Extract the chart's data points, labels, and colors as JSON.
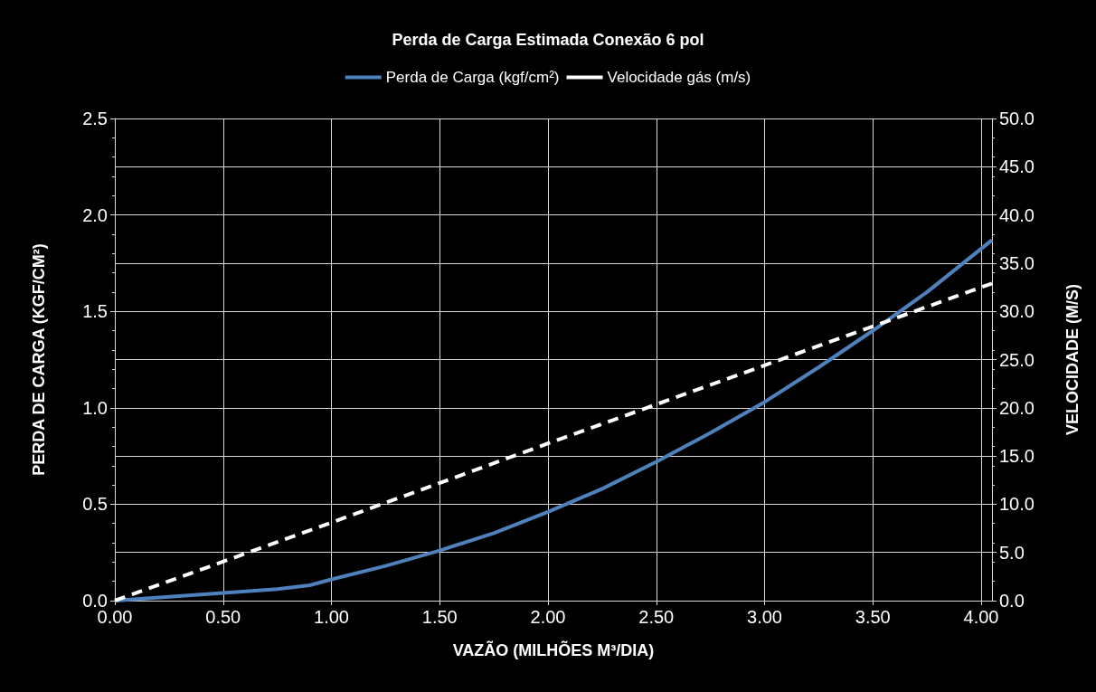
{
  "chart_data": {
    "type": "line",
    "title": "Perda de Carga Estimada Conexão 6 pol",
    "xlabel": "VAZÃO (MILHÕES M³/DIA)",
    "ylabel": "PERDA DE CARGA (KGF/CM²)",
    "y2label": "VELOCIDADE (M/S)",
    "series": [
      {
        "name": "Perda de Carga (kgf/cm²)",
        "color": "#4f81bd",
        "line_style": "solid",
        "x": [
          0,
          0.25,
          0.5,
          0.75,
          0.9,
          1.0,
          1.25,
          1.5,
          1.75,
          2.0,
          2.25,
          2.5,
          2.75,
          3.0,
          3.25,
          3.5,
          3.75,
          4.05
        ],
        "values": [
          0,
          0.02,
          0.04,
          0.06,
          0.08,
          0.11,
          0.18,
          0.26,
          0.35,
          0.46,
          0.58,
          0.72,
          0.87,
          1.03,
          1.21,
          1.4,
          1.6,
          1.87
        ]
      },
      {
        "name": "Velocidade gás (m/s)",
        "color": "#ffffff",
        "line_style": "dashed",
        "axis": "y2",
        "x": [
          0,
          1.0,
          2.0,
          3.0,
          4.05
        ],
        "values": [
          0,
          8.1,
          16.3,
          24.4,
          32.9
        ]
      }
    ],
    "xlim": [
      0,
      4.05
    ],
    "xticks": [
      {
        "value": 0,
        "label": "0.00"
      },
      {
        "value": 0.5,
        "label": "0.50"
      },
      {
        "value": 1,
        "label": "1.00"
      },
      {
        "value": 1.5,
        "label": "1.50"
      },
      {
        "value": 2,
        "label": "2.00"
      },
      {
        "value": 2.5,
        "label": "2.50"
      },
      {
        "value": 3,
        "label": "3.00"
      },
      {
        "value": 3.5,
        "label": "3.50"
      },
      {
        "value": 4,
        "label": "4.00"
      }
    ],
    "ylim": [
      0,
      2.5
    ],
    "yticks": [
      {
        "value": 0,
        "label": "0.0"
      },
      {
        "value": 0.5,
        "label": "0.5"
      },
      {
        "value": 1,
        "label": "1.0"
      },
      {
        "value": 1.5,
        "label": "1.5"
      },
      {
        "value": 2,
        "label": "2.0"
      },
      {
        "value": 2.5,
        "label": "2.5"
      }
    ],
    "y2lim": [
      0,
      50
    ],
    "y2ticks": [
      {
        "value": 0,
        "label": "0.0"
      },
      {
        "value": 5,
        "label": "5.0"
      },
      {
        "value": 10,
        "label": "10.0"
      },
      {
        "value": 15,
        "label": "15.0"
      },
      {
        "value": 20,
        "label": "20.0"
      },
      {
        "value": 25,
        "label": "25.0"
      },
      {
        "value": 30,
        "label": "30.0"
      },
      {
        "value": 35,
        "label": "35.0"
      },
      {
        "value": 40,
        "label": "40.0"
      },
      {
        "value": 45,
        "label": "45.0"
      },
      {
        "value": 50,
        "label": "50.0"
      }
    ],
    "grid": true,
    "legend": "top",
    "marker": "none"
  }
}
